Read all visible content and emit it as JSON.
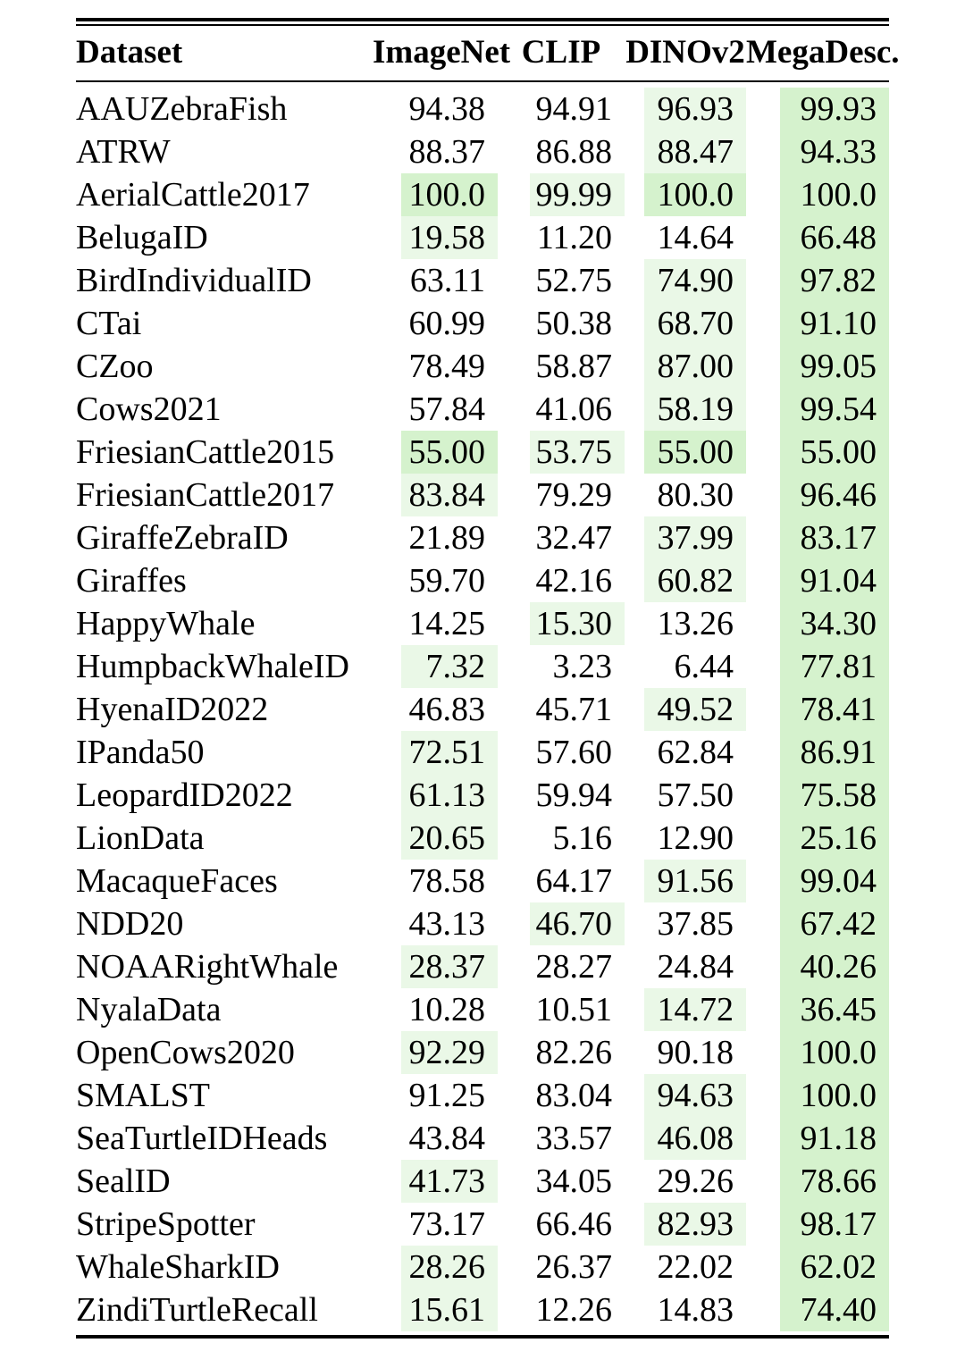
{
  "colors": {
    "best_highlight": "#d5f2cd",
    "second_highlight": "#eaf8e7",
    "rule": "#000000",
    "text": "#000000"
  },
  "chart_data": {
    "type": "table",
    "columns": [
      "Dataset",
      "ImageNet",
      "CLIP",
      "DINOv2",
      "MegaDesc."
    ],
    "highlight_semantics": {
      "best": "best value in row (darker green)",
      "second": "second-best value in row (pale green)"
    },
    "rows": [
      {
        "dataset": "AAUZebraFish",
        "values": [
          "94.38",
          "94.91",
          "96.93",
          "99.93"
        ],
        "marks": [
          null,
          null,
          "second",
          "best"
        ]
      },
      {
        "dataset": "ATRW",
        "values": [
          "88.37",
          "86.88",
          "88.47",
          "94.33"
        ],
        "marks": [
          null,
          null,
          "second",
          "best"
        ]
      },
      {
        "dataset": "AerialCattle2017",
        "values": [
          "100.0",
          "99.99",
          "100.0",
          "100.0"
        ],
        "marks": [
          "best",
          "second",
          "best",
          "best"
        ]
      },
      {
        "dataset": "BelugaID",
        "values": [
          "19.58",
          "11.20",
          "14.64",
          "66.48"
        ],
        "marks": [
          "second",
          null,
          null,
          "best"
        ]
      },
      {
        "dataset": "BirdIndividualID",
        "values": [
          "63.11",
          "52.75",
          "74.90",
          "97.82"
        ],
        "marks": [
          null,
          null,
          "second",
          "best"
        ]
      },
      {
        "dataset": "CTai",
        "values": [
          "60.99",
          "50.38",
          "68.70",
          "91.10"
        ],
        "marks": [
          null,
          null,
          "second",
          "best"
        ]
      },
      {
        "dataset": "CZoo",
        "values": [
          "78.49",
          "58.87",
          "87.00",
          "99.05"
        ],
        "marks": [
          null,
          null,
          "second",
          "best"
        ]
      },
      {
        "dataset": "Cows2021",
        "values": [
          "57.84",
          "41.06",
          "58.19",
          "99.54"
        ],
        "marks": [
          null,
          null,
          "second",
          "best"
        ]
      },
      {
        "dataset": "FriesianCattle2015",
        "values": [
          "55.00",
          "53.75",
          "55.00",
          "55.00"
        ],
        "marks": [
          "best",
          "second",
          "best",
          "best"
        ]
      },
      {
        "dataset": "FriesianCattle2017",
        "values": [
          "83.84",
          "79.29",
          "80.30",
          "96.46"
        ],
        "marks": [
          "second",
          null,
          null,
          "best"
        ]
      },
      {
        "dataset": "GiraffeZebraID",
        "values": [
          "21.89",
          "32.47",
          "37.99",
          "83.17"
        ],
        "marks": [
          null,
          null,
          "second",
          "best"
        ]
      },
      {
        "dataset": "Giraffes",
        "values": [
          "59.70",
          "42.16",
          "60.82",
          "91.04"
        ],
        "marks": [
          null,
          null,
          "second",
          "best"
        ]
      },
      {
        "dataset": "HappyWhale",
        "values": [
          "14.25",
          "15.30",
          "13.26",
          "34.30"
        ],
        "marks": [
          null,
          "second",
          null,
          "best"
        ]
      },
      {
        "dataset": "HumpbackWhaleID",
        "values": [
          "7.32",
          "3.23",
          "6.44",
          "77.81"
        ],
        "marks": [
          "second",
          null,
          null,
          "best"
        ]
      },
      {
        "dataset": "HyenaID2022",
        "values": [
          "46.83",
          "45.71",
          "49.52",
          "78.41"
        ],
        "marks": [
          null,
          null,
          "second",
          "best"
        ]
      },
      {
        "dataset": "IPanda50",
        "values": [
          "72.51",
          "57.60",
          "62.84",
          "86.91"
        ],
        "marks": [
          "second",
          null,
          null,
          "best"
        ]
      },
      {
        "dataset": "LeopardID2022",
        "values": [
          "61.13",
          "59.94",
          "57.50",
          "75.58"
        ],
        "marks": [
          "second",
          null,
          null,
          "best"
        ]
      },
      {
        "dataset": "LionData",
        "values": [
          "20.65",
          "5.16",
          "12.90",
          "25.16"
        ],
        "marks": [
          "second",
          null,
          null,
          "best"
        ]
      },
      {
        "dataset": "MacaqueFaces",
        "values": [
          "78.58",
          "64.17",
          "91.56",
          "99.04"
        ],
        "marks": [
          null,
          null,
          "second",
          "best"
        ]
      },
      {
        "dataset": "NDD20",
        "values": [
          "43.13",
          "46.70",
          "37.85",
          "67.42"
        ],
        "marks": [
          null,
          "second",
          null,
          "best"
        ]
      },
      {
        "dataset": "NOAARightWhale",
        "values": [
          "28.37",
          "28.27",
          "24.84",
          "40.26"
        ],
        "marks": [
          "second",
          null,
          null,
          "best"
        ]
      },
      {
        "dataset": "NyalaData",
        "values": [
          "10.28",
          "10.51",
          "14.72",
          "36.45"
        ],
        "marks": [
          null,
          null,
          "second",
          "best"
        ]
      },
      {
        "dataset": "OpenCows2020",
        "values": [
          "92.29",
          "82.26",
          "90.18",
          "100.0"
        ],
        "marks": [
          "second",
          null,
          null,
          "best"
        ]
      },
      {
        "dataset": "SMALST",
        "values": [
          "91.25",
          "83.04",
          "94.63",
          "100.0"
        ],
        "marks": [
          null,
          null,
          "second",
          "best"
        ]
      },
      {
        "dataset": "SeaTurtleIDHeads",
        "values": [
          "43.84",
          "33.57",
          "46.08",
          "91.18"
        ],
        "marks": [
          null,
          null,
          "second",
          "best"
        ]
      },
      {
        "dataset": "SealID",
        "values": [
          "41.73",
          "34.05",
          "29.26",
          "78.66"
        ],
        "marks": [
          "second",
          null,
          null,
          "best"
        ]
      },
      {
        "dataset": "StripeSpotter",
        "values": [
          "73.17",
          "66.46",
          "82.93",
          "98.17"
        ],
        "marks": [
          null,
          null,
          "second",
          "best"
        ]
      },
      {
        "dataset": "WhaleSharkID",
        "values": [
          "28.26",
          "26.37",
          "22.02",
          "62.02"
        ],
        "marks": [
          "second",
          null,
          null,
          "best"
        ]
      },
      {
        "dataset": "ZindiTurtleRecall",
        "values": [
          "15.61",
          "12.26",
          "14.83",
          "74.40"
        ],
        "marks": [
          "second",
          null,
          null,
          "best"
        ]
      }
    ]
  }
}
